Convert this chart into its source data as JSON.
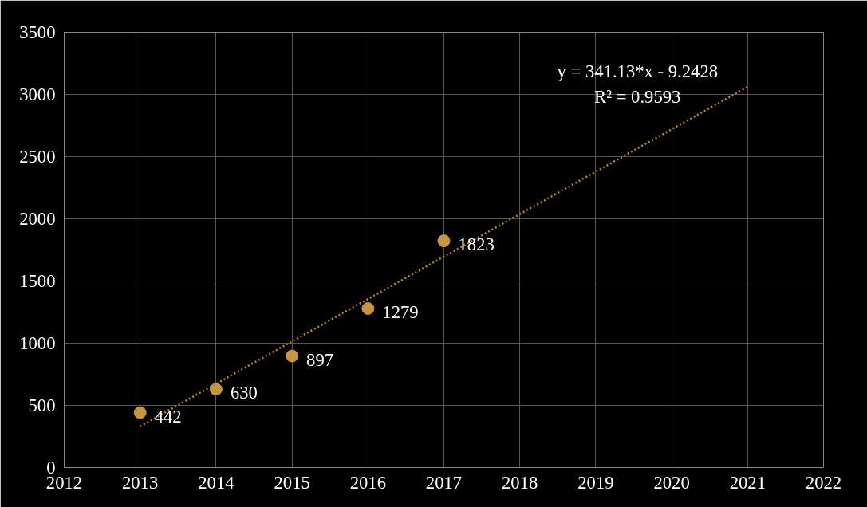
{
  "chart_data": {
    "type": "scatter",
    "xlim": [
      2012,
      2022
    ],
    "xticks": [
      2012,
      2013,
      2014,
      2015,
      2016,
      2017,
      2018,
      2019,
      2020,
      2021,
      2022
    ],
    "ylim": [
      0,
      3500
    ],
    "yticks": [
      0,
      500,
      1000,
      1500,
      2000,
      2500,
      3000,
      3500
    ],
    "grid": true,
    "series": [
      {
        "color": "#c8963e",
        "marker": "circle",
        "x": [
          2013,
          2014,
          2015,
          2016,
          2017
        ],
        "values": [
          442,
          630,
          897,
          1279,
          1823
        ],
        "value_labels": [
          "442",
          "630",
          "897",
          "1279",
          "1823"
        ]
      },
      {
        "type": "line",
        "color": "#b8862b",
        "marker": "none",
        "line_style": "dotted",
        "x": [
          2013,
          2021
        ],
        "values": [
          332,
          3061
        ]
      }
    ],
    "annotations": [
      "y = 341.13*x - 9.2428",
      "R² = 0.9593"
    ]
  }
}
